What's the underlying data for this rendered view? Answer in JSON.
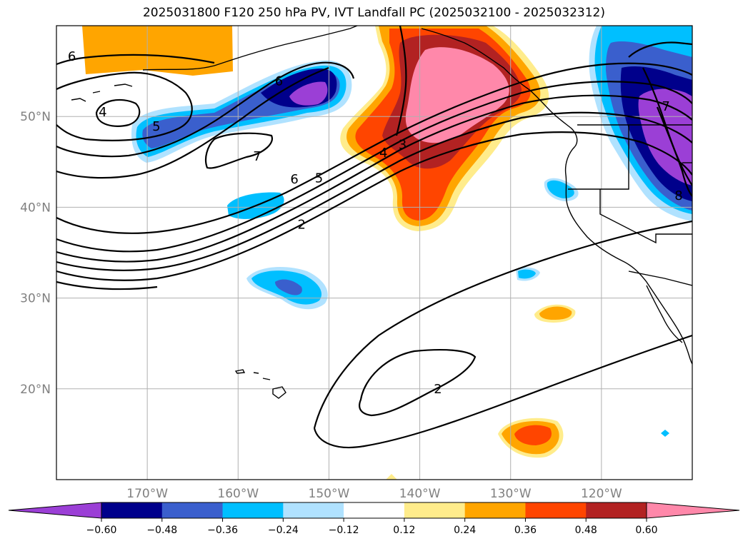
{
  "title": "2025031800 F120 250 hPa PV, IVT Landfall PC (2025032100 - 2025032312)",
  "map": {
    "projection": "lat-lon",
    "lon_range": [
      -180,
      -110
    ],
    "lat_range": [
      10,
      60
    ],
    "lon_ticks": [
      {
        "lon": -170,
        "label": "170°W"
      },
      {
        "lon": -160,
        "label": "160°W"
      },
      {
        "lon": -150,
        "label": "150°W"
      },
      {
        "lon": -140,
        "label": "140°W"
      },
      {
        "lon": -130,
        "label": "130°W"
      },
      {
        "lon": -120,
        "label": "120°W"
      }
    ],
    "lat_ticks": [
      {
        "lat": 50,
        "label": "50°N"
      },
      {
        "lat": 40,
        "label": "40°N"
      },
      {
        "lat": 30,
        "label": "30°N"
      },
      {
        "lat": 20,
        "label": "20°N"
      }
    ],
    "grid": true
  },
  "colorbar": {
    "orientation": "horizontal",
    "extend": "both",
    "colors": [
      "#9b3fd6",
      "#00008b",
      "#3a5fcd",
      "#00bfff",
      "#b0e2ff",
      "#ffffff",
      "#ffec8b",
      "#ffa500",
      "#ff4500",
      "#b22222",
      "#ff88aa"
    ],
    "tick_labels": [
      "−0.60",
      "−0.48",
      "−0.36",
      "−0.24",
      "−0.12",
      "0.12",
      "0.24",
      "0.36",
      "0.48",
      "0.60"
    ]
  },
  "contour_labels": [
    {
      "text": "6",
      "lon": -178.3,
      "lat": 56.6
    },
    {
      "text": "4",
      "lon": -174.9,
      "lat": 50.5
    },
    {
      "text": "5",
      "lon": -169.0,
      "lat": 48.9
    },
    {
      "text": "6",
      "lon": -155.5,
      "lat": 53.9
    },
    {
      "text": "7",
      "lon": -157.9,
      "lat": 45.6
    },
    {
      "text": "6",
      "lon": -153.8,
      "lat": 43.1
    },
    {
      "text": "5",
      "lon": -151.1,
      "lat": 43.2
    },
    {
      "text": "2",
      "lon": -153.0,
      "lat": 38.1
    },
    {
      "text": "4",
      "lon": -144.0,
      "lat": 46.0
    },
    {
      "text": "3",
      "lon": -141.9,
      "lat": 46.9
    },
    {
      "text": "2",
      "lon": -138.0,
      "lat": 20.0
    },
    {
      "text": "7",
      "lon": -112.9,
      "lat": 51.1
    },
    {
      "text": "8",
      "lon": -111.5,
      "lat": 41.3
    }
  ]
}
